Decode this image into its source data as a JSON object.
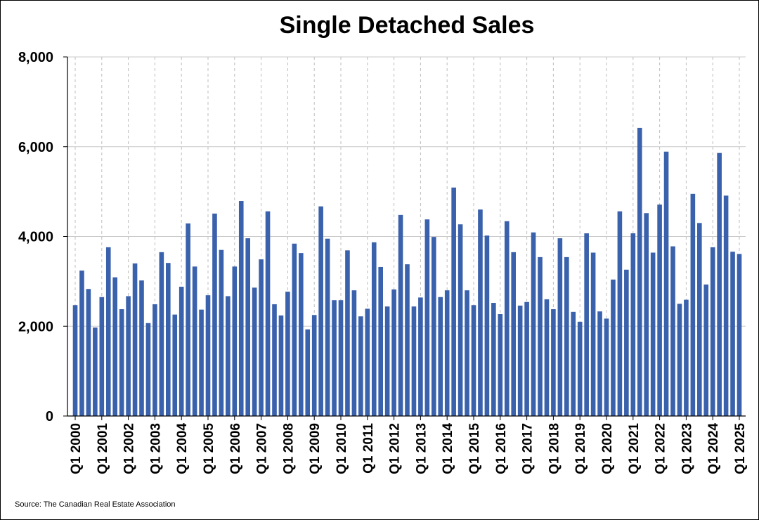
{
  "colors": {
    "bar": "#3A61AB",
    "axis": "#000000",
    "hgrid": "#C8C8C8",
    "vgrid": "#BDBDBD"
  },
  "source": "Source: The Canadian Real Estate Association",
  "chart_data": {
    "type": "bar",
    "title": "Single Detached Sales",
    "xlabel": "",
    "ylabel": "",
    "ylim": [
      0,
      8000
    ],
    "yticks": [
      0,
      2000,
      4000,
      6000,
      8000
    ],
    "ytick_labels": [
      "0",
      "2,000",
      "4,000",
      "6,000",
      "8,000"
    ],
    "grid": {
      "horizontal": true,
      "vertical": "dashed"
    },
    "legend": "none",
    "xtick_labels": [
      "Q1 2000",
      "Q1 2001",
      "Q1 2002",
      "Q1 2003",
      "Q1 2004",
      "Q1 2005",
      "Q1 2006",
      "Q1 2007",
      "Q1 2008",
      "Q1 2009",
      "Q1 2010",
      "Q1 2011",
      "Q1 2012",
      "Q1 2013",
      "Q1 2014",
      "Q1 2015",
      "Q1 2016",
      "Q1 2017",
      "Q1 2018",
      "Q1 2019",
      "Q1 2020",
      "Q1 2021",
      "Q1 2022",
      "Q1 2023",
      "Q1 2024",
      "Q1 2025"
    ],
    "categories": [
      "Q1 2000",
      "Q2 2000",
      "Q3 2000",
      "Q4 2000",
      "Q1 2001",
      "Q2 2001",
      "Q3 2001",
      "Q4 2001",
      "Q1 2002",
      "Q2 2002",
      "Q3 2002",
      "Q4 2002",
      "Q1 2003",
      "Q2 2003",
      "Q3 2003",
      "Q4 2003",
      "Q1 2004",
      "Q2 2004",
      "Q3 2004",
      "Q4 2004",
      "Q1 2005",
      "Q2 2005",
      "Q3 2005",
      "Q4 2005",
      "Q1 2006",
      "Q2 2006",
      "Q3 2006",
      "Q4 2006",
      "Q1 2007",
      "Q2 2007",
      "Q3 2007",
      "Q4 2007",
      "Q1 2008",
      "Q2 2008",
      "Q3 2008",
      "Q4 2008",
      "Q1 2009",
      "Q2 2009",
      "Q3 2009",
      "Q4 2009",
      "Q1 2010",
      "Q2 2010",
      "Q3 2010",
      "Q4 2010",
      "Q1 2011",
      "Q2 2011",
      "Q3 2011",
      "Q4 2011",
      "Q1 2012",
      "Q2 2012",
      "Q3 2012",
      "Q4 2012",
      "Q1 2013",
      "Q2 2013",
      "Q3 2013",
      "Q4 2013",
      "Q1 2014",
      "Q2 2014",
      "Q3 2014",
      "Q4 2014",
      "Q1 2015",
      "Q2 2015",
      "Q3 2015",
      "Q4 2015",
      "Q1 2016",
      "Q2 2016",
      "Q3 2016",
      "Q4 2016",
      "Q1 2017",
      "Q2 2017",
      "Q3 2017",
      "Q4 2017",
      "Q1 2018",
      "Q2 2018",
      "Q3 2018",
      "Q4 2018",
      "Q1 2019",
      "Q2 2019",
      "Q3 2019",
      "Q4 2019",
      "Q1 2020",
      "Q2 2020",
      "Q3 2020",
      "Q4 2020",
      "Q1 2021",
      "Q2 2021",
      "Q3 2021",
      "Q4 2021",
      "Q1 2022",
      "Q2 2022",
      "Q3 2022",
      "Q4 2022",
      "Q1 2023",
      "Q2 2023",
      "Q3 2023",
      "Q4 2023",
      "Q1 2024",
      "Q2 2024",
      "Q3 2024",
      "Q4 2024",
      "Q1 2025"
    ],
    "values": [
      2470,
      3240,
      2830,
      1970,
      2650,
      3760,
      3090,
      2380,
      2670,
      3400,
      3020,
      2070,
      2490,
      3650,
      3410,
      2260,
      2880,
      4290,
      3330,
      2370,
      2690,
      4510,
      3700,
      2670,
      3330,
      4790,
      3960,
      2860,
      3490,
      4560,
      2490,
      2240,
      2770,
      3840,
      3630,
      1930,
      2250,
      4670,
      3950,
      2580,
      2580,
      3690,
      2800,
      2220,
      2390,
      3870,
      3320,
      2440,
      2820,
      4480,
      3380,
      2440,
      2640,
      4380,
      3990,
      2650,
      2800,
      5090,
      4270,
      2800,
      2470,
      4600,
      4020,
      2520,
      2270,
      4340,
      3650,
      2460,
      2540,
      4090,
      3540,
      2600,
      2380,
      3960,
      3540,
      2320,
      2100,
      4070,
      3640,
      2330,
      2170,
      3040,
      4560,
      3260,
      4070,
      6420,
      4520,
      3640,
      4710,
      5890,
      3780,
      2500,
      2590,
      4950,
      4300,
      2930,
      3760,
      5860,
      4910,
      3660,
      3610
    ]
  }
}
